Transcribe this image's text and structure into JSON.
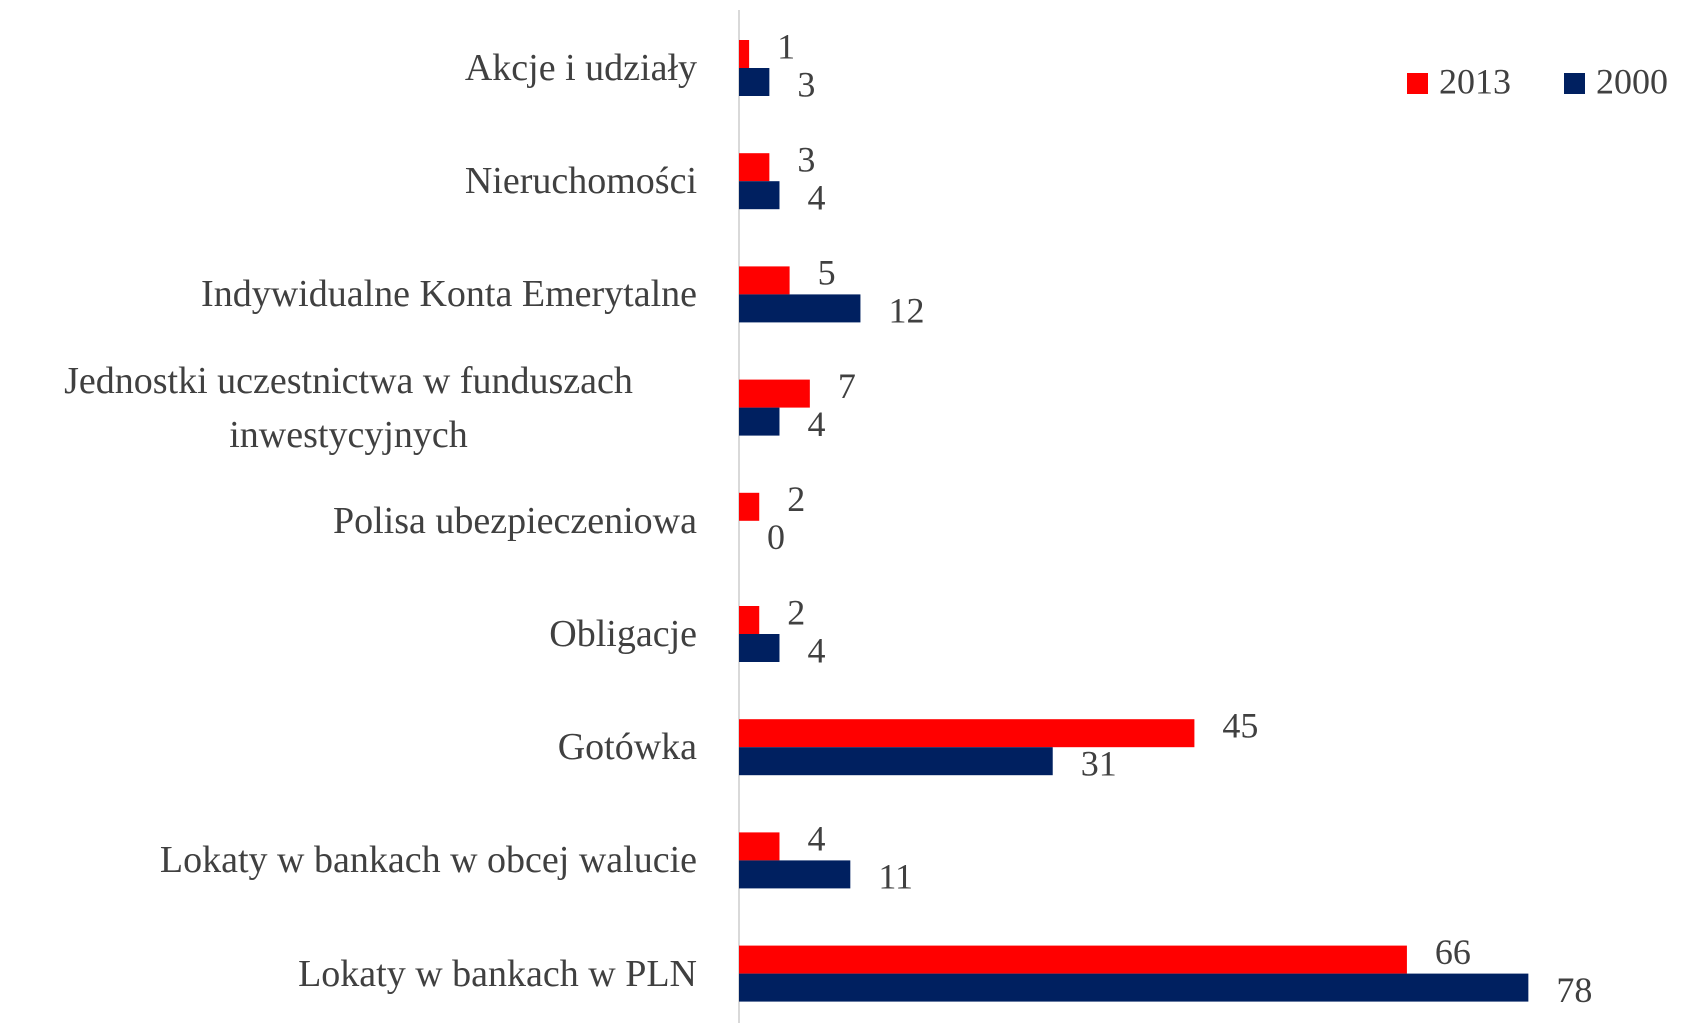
{
  "chart_data": {
    "type": "hbar",
    "categories": [
      "Akcje i udziały",
      "Nieruchomości",
      "Indywidualne Konta Emerytalne",
      "Jednostki uczestnictwa w funduszach inwestycyjnych",
      "Polisa ubezpieczeniowa",
      "Obligacje",
      "Gotówka",
      "Lokaty w bankach w obcej walucie",
      "Lokaty w bankach w PLN"
    ],
    "series": [
      {
        "name": "2013",
        "color": "#ff0000",
        "values": [
          1,
          3,
          5,
          7,
          2,
          2,
          45,
          4,
          66
        ]
      },
      {
        "name": "2000",
        "color": "#002060",
        "values": [
          3,
          4,
          12,
          4,
          0,
          4,
          31,
          11,
          78
        ]
      }
    ],
    "xlim": [
      0,
      80
    ],
    "legend": "top-right"
  }
}
